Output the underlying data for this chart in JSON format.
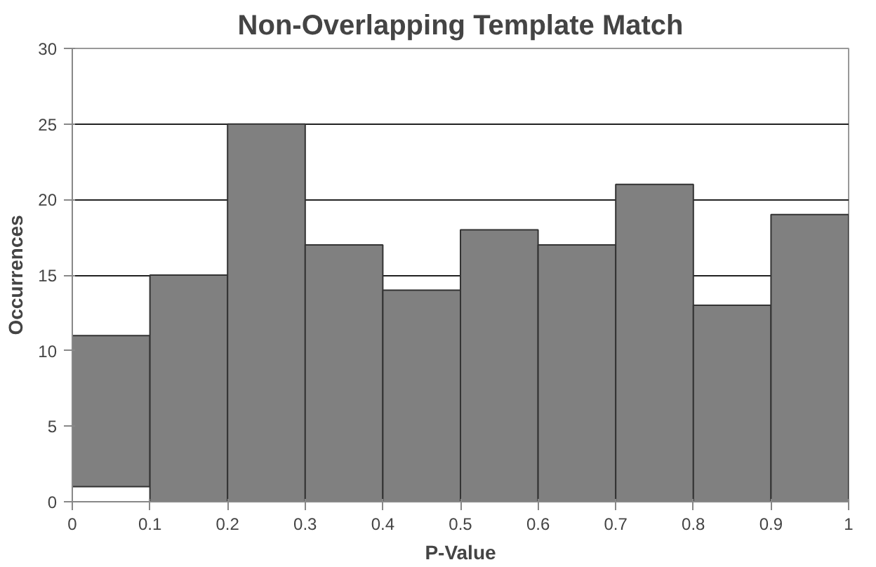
{
  "chart_data": {
    "type": "histogram",
    "title": "Non-Overlapping Template Match",
    "xlabel": "P-Value",
    "ylabel": "Occurrences",
    "bins": [
      0,
      0.1,
      0.2,
      0.3,
      0.4,
      0.5,
      0.6,
      0.7,
      0.8,
      0.9,
      1
    ],
    "values": [
      10,
      15,
      25,
      17,
      14,
      18,
      17,
      21,
      13,
      19
    ],
    "base": [
      1,
      0,
      0,
      0,
      0,
      0,
      0,
      0,
      0,
      0
    ],
    "color": "#808080",
    "xlim": [
      0,
      1
    ],
    "xticks": [
      0,
      0.1,
      0.2,
      0.3,
      0.4,
      0.5,
      0.6,
      0.7,
      0.8,
      0.9,
      1
    ],
    "ylim": [
      0,
      30
    ],
    "yticks": [
      0,
      5,
      10,
      15,
      20,
      25,
      30
    ],
    "grid": "y"
  }
}
